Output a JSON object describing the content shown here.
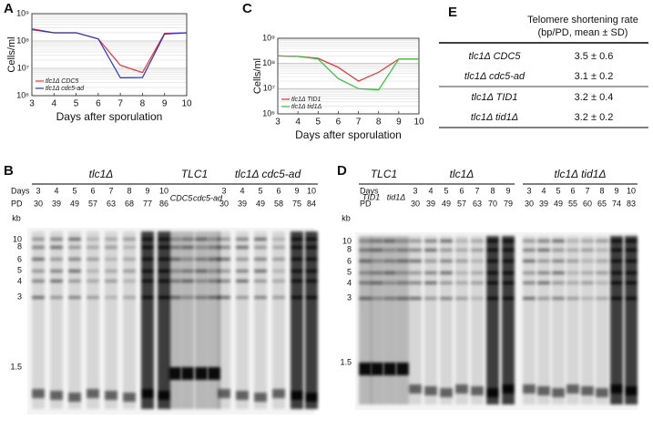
{
  "panel_labels": [
    "A",
    "B",
    "C",
    "D",
    "E"
  ],
  "chart_data": [
    {
      "type": "line",
      "y_label": "Cells/ml",
      "x_label": "Days after sporulation",
      "log_scale": true,
      "grid": true,
      "legend": "lower left",
      "x": [
        3,
        4,
        5,
        6,
        7,
        8,
        9,
        10
      ],
      "xlim": [
        3,
        10
      ],
      "xticks": [
        3,
        4,
        5,
        6,
        7,
        8,
        9,
        10
      ],
      "ylim": [
        1000000,
        1000000000
      ],
      "yticks": [
        {
          "value": 1000000,
          "label": "10⁶"
        },
        {
          "value": 10000000,
          "label": "10⁷"
        },
        {
          "value": 100000000,
          "label": "10⁸"
        },
        {
          "value": 1000000000,
          "label": "10⁹"
        }
      ],
      "series": [
        {
          "name": "tlc1Δ CDC5",
          "color": "#e8312f",
          "values": [
            280000000,
            200000000,
            200000000,
            120000000,
            13000000,
            7000000,
            190000000,
            200000000
          ]
        },
        {
          "name": "tlc1Δ cdc5-ad",
          "color": "#2d35c9",
          "values": [
            260000000,
            200000000,
            200000000,
            120000000,
            4500000,
            4600000,
            180000000,
            200000000
          ]
        }
      ]
    },
    {
      "type": "line",
      "y_label": "Cells/ml",
      "x_label": "Days after sporulation",
      "log_scale": true,
      "grid": true,
      "legend": "lower left",
      "x": [
        3,
        4,
        5,
        6,
        7,
        8,
        9,
        10
      ],
      "xlim": [
        3,
        10
      ],
      "xticks": [
        3,
        4,
        5,
        6,
        7,
        8,
        9,
        10
      ],
      "ylim": [
        1000000,
        1000000000
      ],
      "yticks": [
        {
          "value": 1000000,
          "label": "10⁶"
        },
        {
          "value": 10000000,
          "label": "10⁷"
        },
        {
          "value": 100000000,
          "label": "10⁸"
        },
        {
          "value": 1000000000,
          "label": "10⁹"
        }
      ],
      "series": [
        {
          "name": "tlc1Δ TID1",
          "color": "#e8312f",
          "values": [
            200000000,
            190000000,
            160000000,
            70000000,
            20000000,
            45000000,
            150000000,
            150000000
          ]
        },
        {
          "name": "tlc1Δ tid1Δ",
          "color": "#2fc43a",
          "values": [
            200000000,
            190000000,
            150000000,
            25000000,
            10000000,
            9000000,
            150000000,
            150000000
          ]
        }
      ]
    }
  ],
  "table": {
    "header": [
      "Telomere shortening rate",
      "(bp/PD, mean ±  SD)"
    ],
    "rows": [
      [
        "tlc1Δ CDC5",
        "3.5 ±  0.6"
      ],
      [
        "tlc1Δ cdc5-ad",
        "3.1 ±  0.2"
      ],
      [
        "tlc1Δ TID1",
        "3.2 ±  0.4"
      ],
      [
        "tlc1Δ tid1Δ",
        "3.2 ±  0.2"
      ]
    ]
  },
  "gels": [
    {
      "days_label": "Days",
      "pd_label": "PD",
      "kb_label": "kb",
      "markers": [
        10,
        8,
        6,
        5,
        4,
        3,
        1.5
      ],
      "groups": [
        {
          "label": "tlc1Δ",
          "days": [
            3,
            4,
            5,
            6,
            7,
            8,
            9,
            10
          ],
          "pd": [
            30,
            39,
            49,
            57,
            63,
            68,
            77,
            86
          ]
        },
        {
          "label": "TLC1",
          "strains": [
            "CDC5",
            "cdc5-ad"
          ]
        },
        {
          "label": "tlc1Δ cdc5-ad",
          "days": [
            3,
            4,
            5,
            6,
            9,
            10
          ],
          "pd": [
            30,
            39,
            49,
            58,
            75,
            84
          ]
        }
      ]
    },
    {
      "days_label": "Days",
      "pd_label": "PD",
      "kb_label": "kb",
      "markers": [
        10,
        8,
        6,
        5,
        4,
        3,
        1.5
      ],
      "groups": [
        {
          "label": "TLC1",
          "strains": [
            "TID1",
            "tid1Δ"
          ]
        },
        {
          "label": "tlc1Δ",
          "days": [
            3,
            4,
            5,
            6,
            7,
            8,
            9
          ],
          "pd": [
            30,
            39,
            49,
            57,
            63,
            70,
            79
          ]
        },
        {
          "label": "tlc1Δ tid1Δ",
          "days": [
            3,
            4,
            5,
            6,
            7,
            8,
            9,
            10
          ],
          "pd": [
            30,
            39,
            49,
            55,
            60,
            65,
            74,
            83
          ]
        }
      ]
    }
  ]
}
